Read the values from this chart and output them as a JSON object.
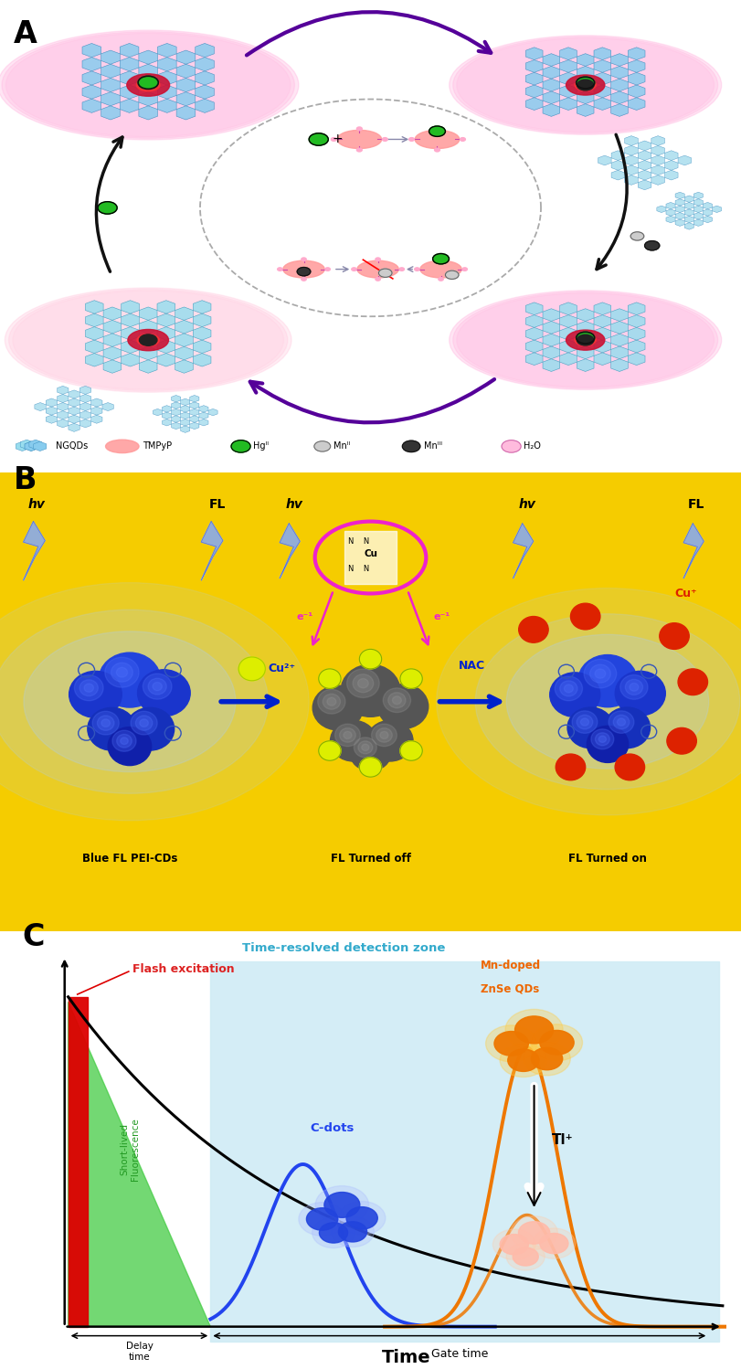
{
  "fig_width": 8.11,
  "fig_height": 14.98,
  "dpi": 100,
  "panel_A": {
    "label": "A",
    "ymin": 0.655,
    "ymax": 1.0,
    "legend_items": [
      "NGQDs",
      "TMPyP",
      "Hgᴵᴵ",
      "Mnᴵᴵ",
      "Mnᴵᴵᴵ",
      "H₂O"
    ]
  },
  "panel_B": {
    "label": "B",
    "ymin": 0.32,
    "ymax": 0.655,
    "bg_color": "#f5cc00",
    "labels": [
      "Blue FL PEI-CDs",
      "FL Turned off",
      "FL Turned on"
    ]
  },
  "panel_C": {
    "label": "C",
    "ymin": 0.0,
    "ymax": 0.32
  }
}
